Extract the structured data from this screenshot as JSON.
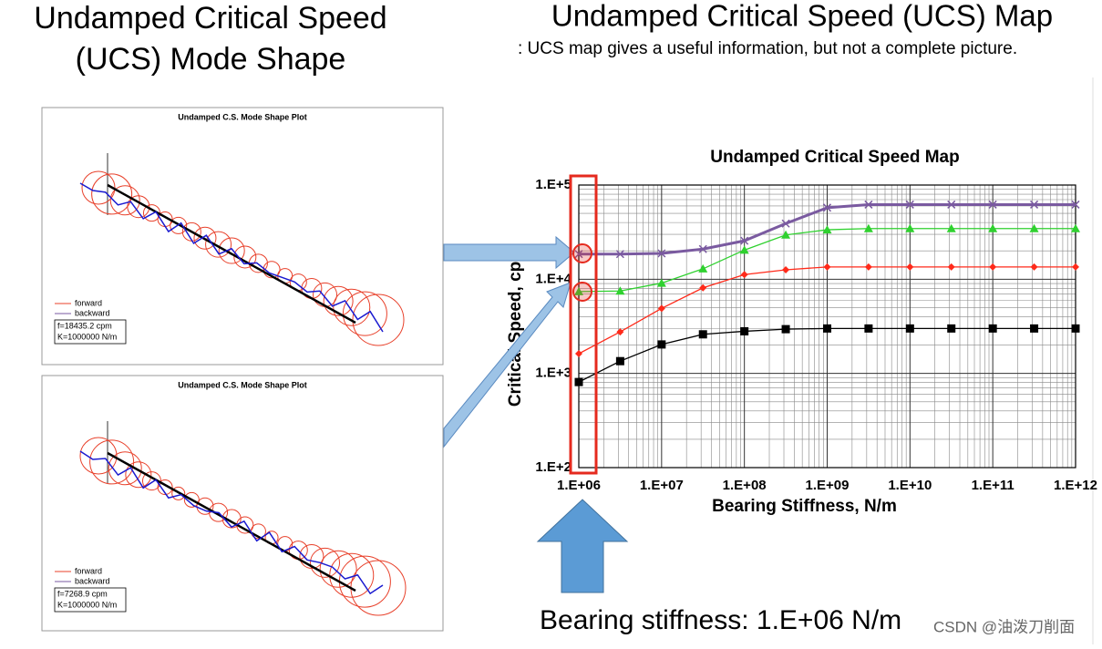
{
  "left_title": [
    "Undamped Critical Speed",
    "(UCS) Mode Shape"
  ],
  "right_title": "Undamped Critical Speed (UCS) Map",
  "right_subtitle": ": UCS map gives a useful information, but not a complete picture.",
  "mode_plots": [
    {
      "title": "Undamped C.S. Mode Shape Plot",
      "legend": [
        "forward",
        "backward"
      ],
      "info": [
        "f=18435.2 cpm",
        "K=1000000 N/m"
      ]
    },
    {
      "title": "Undamped C.S. Mode Shape Plot",
      "legend": [
        "forward",
        "backward"
      ],
      "info": [
        "f=7268.9 cpm",
        "K=1000000 N/m"
      ]
    }
  ],
  "chart_data": {
    "type": "line",
    "title": "Undamped Critical Speed Map",
    "x_label": "Bearing Stiffness, N/m",
    "y_label": "Critical Speed, cpm",
    "log_x": true,
    "log_y": true,
    "grid": true,
    "x": [
      1000000,
      3160000,
      10000000,
      31600000,
      100000000,
      316000000,
      1000000000,
      3160000000,
      10000000000,
      31600000000,
      100000000000,
      316000000000,
      1000000000000
    ],
    "series": [
      {
        "color": "#000000",
        "marker": "square",
        "values": [
          810,
          1350,
          2030,
          2600,
          2800,
          2950,
          3000,
          3000,
          3000,
          3000,
          3000,
          3000,
          3000
        ]
      },
      {
        "color": "#ff2a1a",
        "marker": "diamond",
        "values": [
          1620,
          2760,
          4900,
          8100,
          11200,
          12600,
          13500,
          13500,
          13500,
          13500,
          13500,
          13500,
          13500
        ]
      },
      {
        "color": "#2fd12f",
        "marker": "triangle",
        "values": [
          7400,
          7500,
          9100,
          12900,
          20400,
          29500,
          33500,
          34500,
          34500,
          34500,
          34500,
          34500,
          34500
        ]
      },
      {
        "color": "#7a5aa0",
        "marker": "x",
        "values": [
          18500,
          18500,
          18800,
          20900,
          25600,
          39000,
          57500,
          62000,
          62000,
          62000,
          62000,
          62000,
          62000
        ]
      }
    ],
    "xlim": [
      1000000,
      1000000000000
    ],
    "ylim": [
      100,
      100000
    ],
    "xticks": [
      {
        "value": 1000000,
        "label": "1.E+06"
      },
      {
        "value": 10000000,
        "label": "1.E+07"
      },
      {
        "value": 100000000,
        "label": "1.E+08"
      },
      {
        "value": 1000000000,
        "label": "1.E+09"
      },
      {
        "value": 10000000000,
        "label": "1.E+10"
      },
      {
        "value": 100000000000,
        "label": "1.E+11"
      },
      {
        "value": 1000000000000,
        "label": "1.E+12"
      }
    ],
    "yticks": [
      {
        "value": 100,
        "label": "1.E+2"
      },
      {
        "value": 1000,
        "label": "1.E+3"
      },
      {
        "value": 10000,
        "label": "1.E+4"
      },
      {
        "value": 100000,
        "label": "1.E+5"
      }
    ]
  },
  "caption": "Bearing stiffness: 1.E+06 N/m",
  "watermark": "CSDN @油泼刀削面"
}
